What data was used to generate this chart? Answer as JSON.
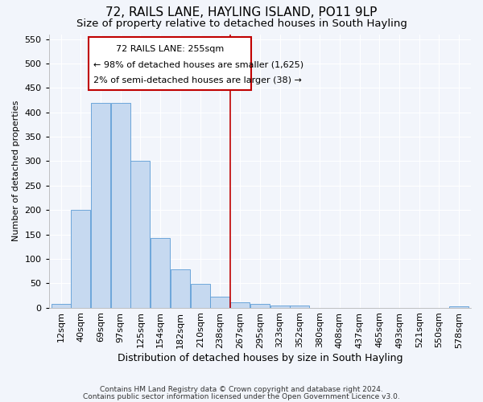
{
  "title": "72, RAILS LANE, HAYLING ISLAND, PO11 9LP",
  "subtitle": "Size of property relative to detached houses in South Hayling",
  "xlabel": "Distribution of detached houses by size in South Hayling",
  "ylabel": "Number of detached properties",
  "footnote1": "Contains HM Land Registry data © Crown copyright and database right 2024.",
  "footnote2": "Contains public sector information licensed under the Open Government Licence v3.0.",
  "bar_labels": [
    "12sqm",
    "40sqm",
    "69sqm",
    "97sqm",
    "125sqm",
    "154sqm",
    "182sqm",
    "210sqm",
    "238sqm",
    "267sqm",
    "295sqm",
    "323sqm",
    "352sqm",
    "380sqm",
    "408sqm",
    "437sqm",
    "465sqm",
    "493sqm",
    "521sqm",
    "550sqm",
    "578sqm"
  ],
  "bar_values": [
    7,
    200,
    420,
    420,
    300,
    143,
    79,
    49,
    23,
    11,
    7,
    5,
    5,
    0,
    0,
    0,
    0,
    0,
    0,
    0,
    2
  ],
  "bar_color": "#c6d9f0",
  "bar_edge_color": "#5b9bd5",
  "vline_x": 8.5,
  "vline_color": "#c00000",
  "annotation_line1": "72 RAILS LANE: 255sqm",
  "annotation_line2": "← 98% of detached houses are smaller (1,625)",
  "annotation_line3": "2% of semi-detached houses are larger (38) →",
  "annotation_box_color": "#c00000",
  "ylim": [
    0,
    560
  ],
  "yticks": [
    0,
    50,
    100,
    150,
    200,
    250,
    300,
    350,
    400,
    450,
    500,
    550
  ],
  "background_color": "#f2f5fb",
  "grid_color": "#ffffff",
  "title_fontsize": 11,
  "subtitle_fontsize": 9.5,
  "xlabel_fontsize": 9,
  "ylabel_fontsize": 8,
  "tick_fontsize": 8,
  "footnote_fontsize": 6.5
}
